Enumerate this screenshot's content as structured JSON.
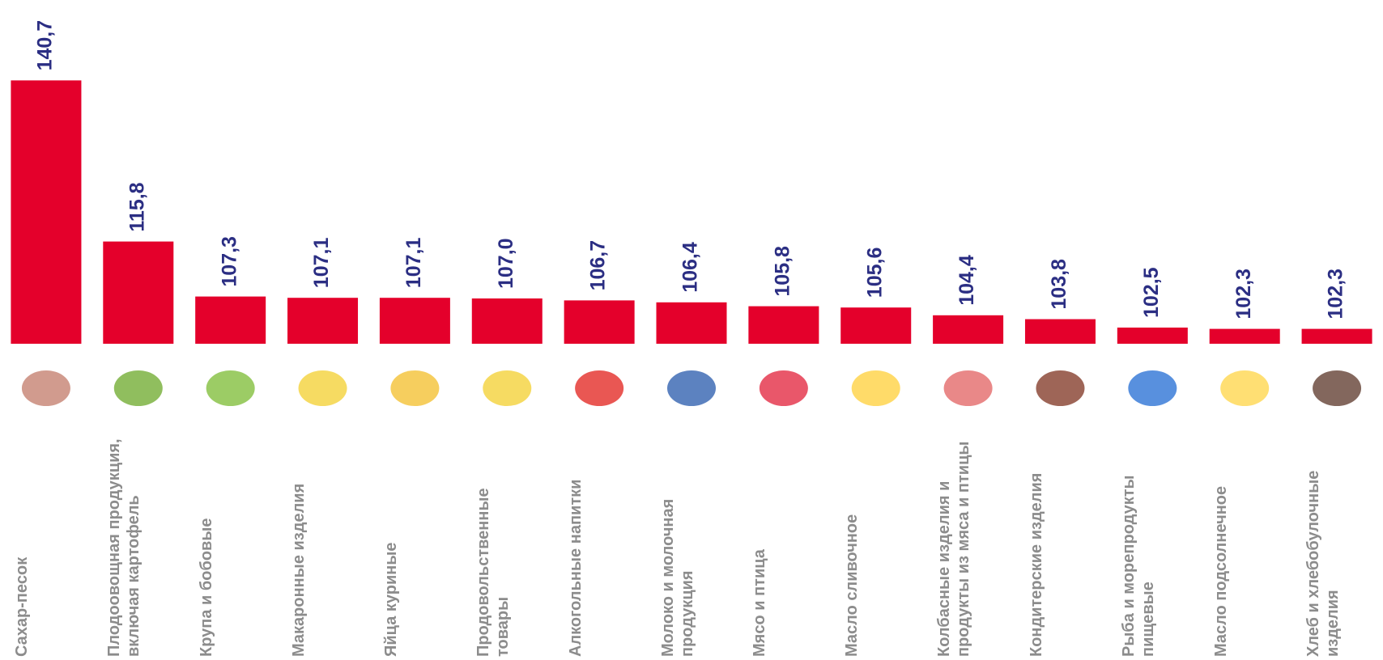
{
  "chart_data": {
    "type": "bar",
    "categories": [
      "Сахар-песок",
      "Плодоовощная продукция, включая картофель",
      "Крупа и бобовые",
      "Макаронные изделия",
      "Яйца куриные",
      "Продовольственные товары",
      "Алкогольные напитки",
      "Молоко и молочная продукция",
      "Мясо и птица",
      "Масло сливочное",
      "Колбасные изделия и продукты из мяса и птицы",
      "Кондитерские изделия",
      "Рыба и морепродукты пищевые",
      "Масло подсолнечное",
      "Хлеб и хлебобулочные изделия"
    ],
    "values": [
      140.7,
      115.8,
      107.3,
      107.1,
      107.1,
      107.0,
      106.7,
      106.4,
      105.8,
      105.6,
      104.4,
      103.8,
      102.5,
      102.3,
      102.3
    ],
    "value_labels": [
      "140,7",
      "115,8",
      "107,3",
      "107,1",
      "107,1",
      "107,0",
      "106,7",
      "106,4",
      "105,8",
      "105,6",
      "104,4",
      "103,8",
      "102,5",
      "102,3",
      "102,3"
    ],
    "color": "#e4002b",
    "label_color": "#2b2e83",
    "ylim": [
      100,
      141
    ]
  }
}
